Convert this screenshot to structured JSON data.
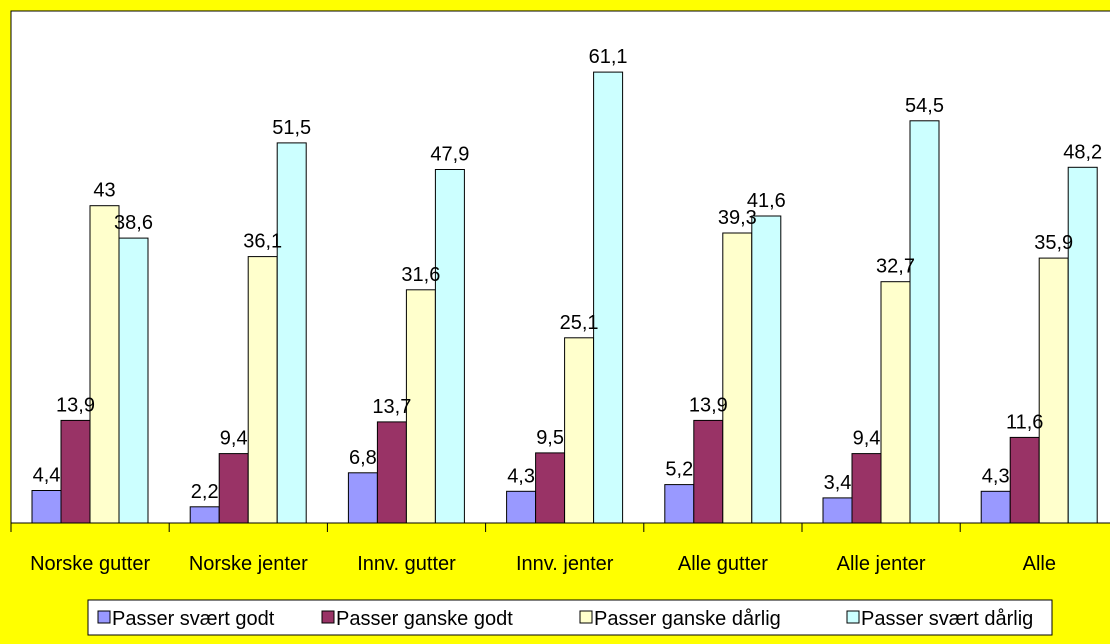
{
  "colors": {
    "page_background": "#ffff00",
    "plot_background": "#ffffff",
    "axis": "#000000"
  },
  "chart_data": {
    "type": "bar",
    "categories": [
      "Norske gutter",
      "Norske jenter",
      "Innv. gutter",
      "Innv. jenter",
      "Alle gutter",
      "Alle jenter",
      "Alle"
    ],
    "series": [
      {
        "name": "Passer svært godt",
        "color": "#9999ff",
        "values": [
          4.4,
          2.2,
          6.8,
          4.3,
          5.2,
          3.4,
          4.3
        ],
        "labels": [
          "4,4",
          "2,2",
          "6,8",
          "4,3",
          "5,2",
          "3,4",
          "4,3"
        ]
      },
      {
        "name": "Passer ganske godt",
        "color": "#993366",
        "values": [
          13.9,
          9.4,
          13.7,
          9.5,
          13.9,
          9.4,
          11.6
        ],
        "labels": [
          "13,9",
          "9,4",
          "13,7",
          "9,5",
          "13,9",
          "9,4",
          "11,6"
        ]
      },
      {
        "name": "Passer ganske dårlig",
        "color": "#ffffcc",
        "values": [
          43,
          36.1,
          31.6,
          25.1,
          39.3,
          32.7,
          35.9
        ],
        "labels": [
          "43",
          "36,1",
          "31,6",
          "25,1",
          "39,3",
          "32,7",
          "35,9"
        ]
      },
      {
        "name": "Passer svært dårlig",
        "color": "#ccffff",
        "values": [
          38.6,
          51.5,
          47.9,
          61.1,
          41.6,
          54.5,
          48.2
        ],
        "labels": [
          "38,6",
          "51,5",
          "47,9",
          "61,1",
          "41,6",
          "54,5",
          "48,2"
        ]
      }
    ],
    "ylim": [
      0,
      70
    ],
    "grid": false,
    "legend_position": "bottom"
  }
}
